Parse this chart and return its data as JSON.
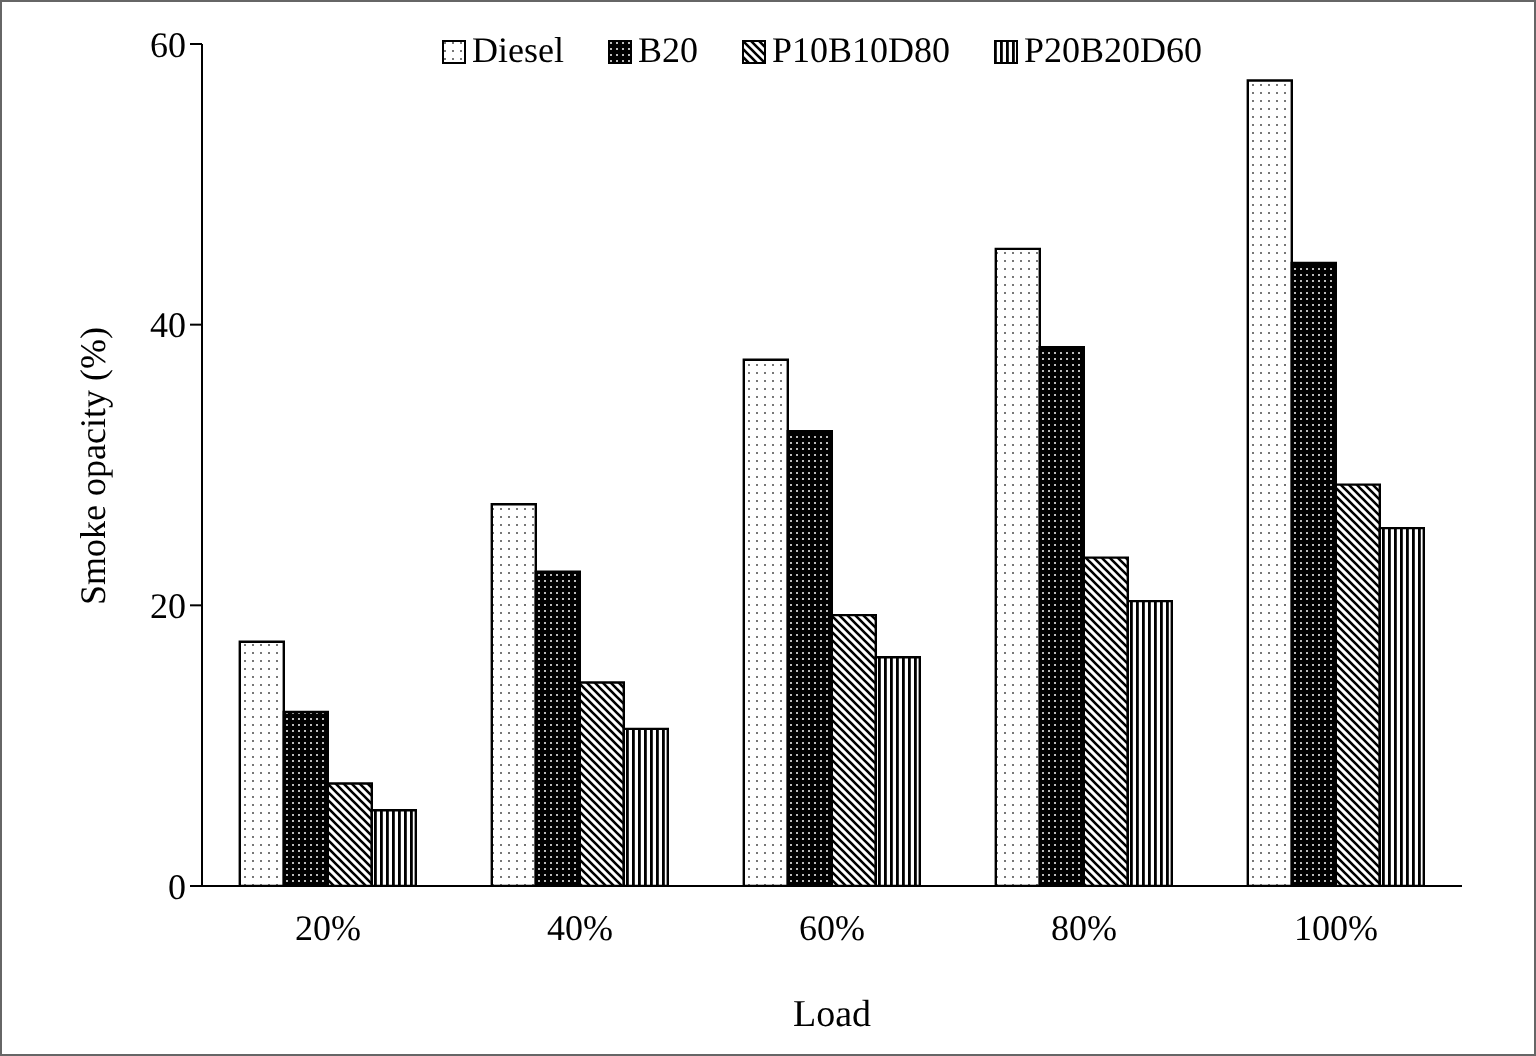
{
  "chart_data": {
    "type": "bar",
    "xlabel": "Load",
    "ylabel": "Smoke opacity (%)",
    "categories": [
      "20%",
      "40%",
      "60%",
      "80%",
      "100%"
    ],
    "series": [
      {
        "name": "Diesel",
        "color": "#000000",
        "values": [
          17.4,
          27.2,
          37.5,
          45.4,
          57.4
        ]
      },
      {
        "name": "B20",
        "color": "#000000",
        "values": [
          12.4,
          22.4,
          32.4,
          38.4,
          44.4
        ]
      },
      {
        "name": "P10B10D80",
        "color": "#000000",
        "values": [
          7.3,
          14.5,
          19.3,
          23.4,
          28.6
        ]
      },
      {
        "name": "P20B20D60",
        "color": "#000000",
        "values": [
          5.4,
          11.2,
          16.3,
          20.3,
          25.5
        ]
      }
    ],
    "ylim": [
      0,
      60
    ],
    "yticks": [
      0,
      20,
      40,
      60
    ],
    "grid": false,
    "legend": "top"
  }
}
